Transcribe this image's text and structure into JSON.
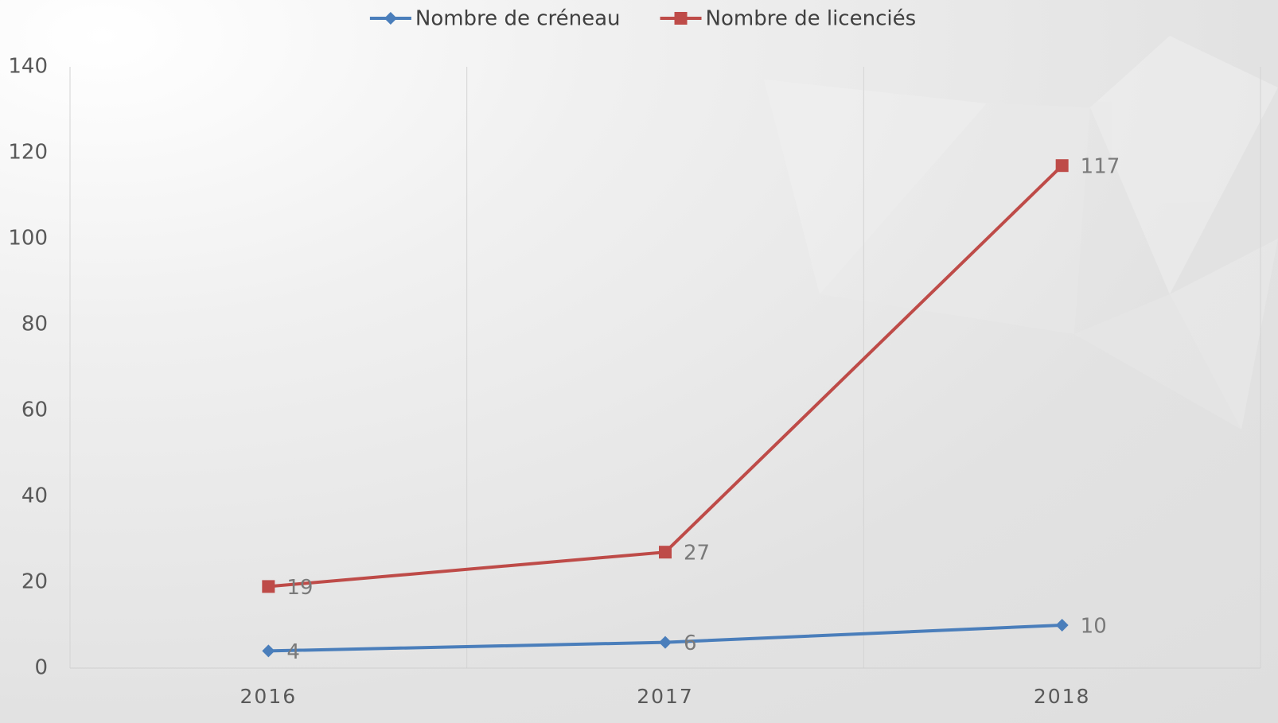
{
  "chart_data": {
    "type": "line",
    "categories": [
      "2016",
      "2017",
      "2018"
    ],
    "series": [
      {
        "name": "Nombre de créneau",
        "color": "#4a7ebb",
        "marker": "diamond",
        "values": [
          4,
          6,
          10
        ]
      },
      {
        "name": "Nombre de licenciés",
        "color": "#be4b48",
        "marker": "square",
        "values": [
          19,
          27,
          117
        ]
      }
    ],
    "ylim": [
      0,
      140
    ],
    "yticks": [
      0,
      20,
      40,
      60,
      80,
      100,
      120,
      140
    ],
    "grid": "vertical",
    "legend": "top",
    "data_labels": true
  }
}
